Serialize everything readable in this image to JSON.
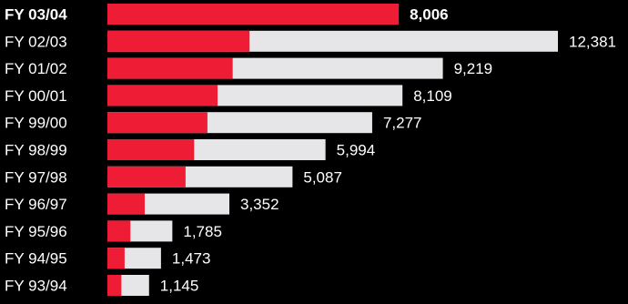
{
  "chart_data": {
    "type": "bar",
    "orientation": "horizontal",
    "categories": [
      "FY 03/04",
      "FY 02/03",
      "FY 01/02",
      "FY 00/01",
      "FY 99/00",
      "FY 98/99",
      "FY 97/98",
      "FY 96/97",
      "FY 95/96",
      "FY 94/95",
      "FY 93/94"
    ],
    "values": [
      8006,
      12381,
      9219,
      8109,
      7277,
      5994,
      5087,
      3352,
      1785,
      1473,
      1145
    ],
    "value_labels": [
      "8,006",
      "12,381",
      "9,219",
      "8,109",
      "7,277",
      "5,994",
      "5,087",
      "3,352",
      "1,785",
      "1,473",
      "1,145"
    ],
    "red_portion": [
      8006,
      3907,
      3443,
      3027,
      2749,
      2383,
      2148,
      1025,
      632,
      473,
      383
    ],
    "highlight_index": 0,
    "title": "",
    "xlabel": "",
    "ylabel": "",
    "xlim": [
      0,
      12381
    ],
    "grid": false,
    "legend": "none",
    "colors": {
      "background": "#000000",
      "highlight": "#ee1c35",
      "remainder": "#e6e6e8",
      "text": "#ffffff"
    }
  }
}
